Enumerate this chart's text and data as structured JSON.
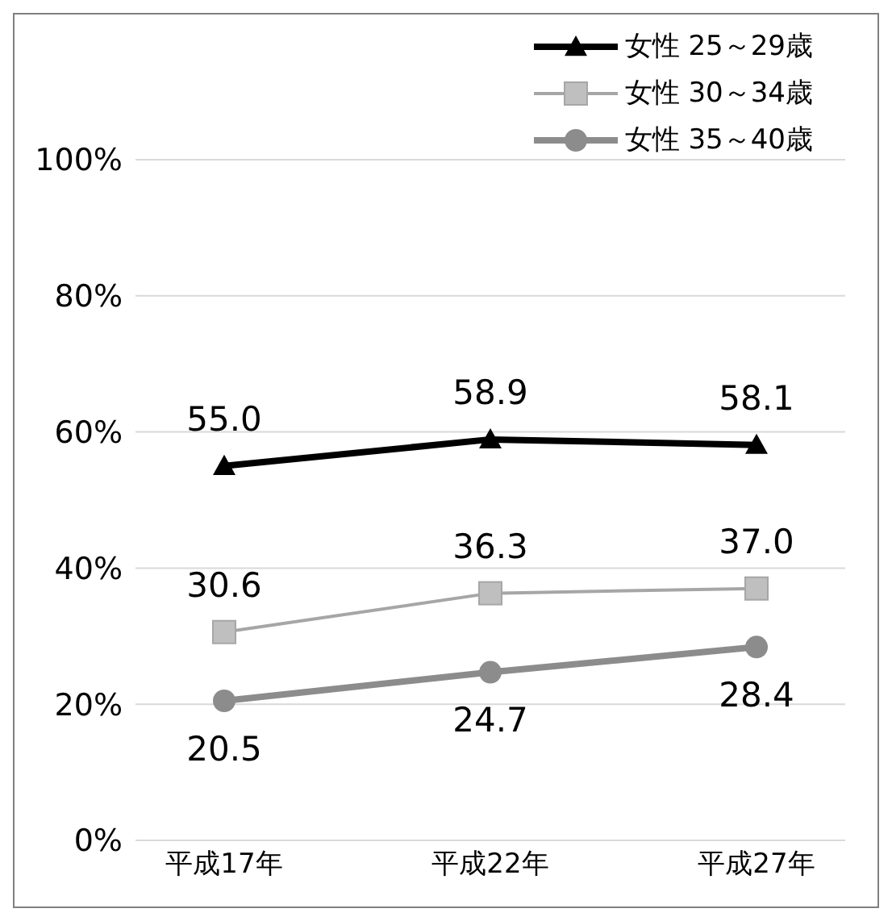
{
  "chart_data": {
    "type": "line",
    "categories": [
      "平成17年",
      "平成22年",
      "平成27年"
    ],
    "series": [
      {
        "name": "女性 25～29歳",
        "color": "#000000",
        "marker": "triangle",
        "values": [
          55.0,
          58.9,
          58.1
        ],
        "value_labels": [
          "55.0",
          "58.9",
          "58.1"
        ]
      },
      {
        "name": "女性 30～34歳",
        "color": "#a6a6a6",
        "marker": "square",
        "values": [
          30.6,
          36.3,
          37.0
        ],
        "value_labels": [
          "30.6",
          "36.3",
          "37.0"
        ]
      },
      {
        "name": "女性 35～40歳",
        "color": "#8c8c8c",
        "marker": "circle",
        "values": [
          20.5,
          24.7,
          28.4
        ],
        "value_labels": [
          "20.5",
          "24.7",
          "28.4"
        ]
      }
    ],
    "ylim": [
      0,
      100
    ],
    "yticks": [
      {
        "value": 0,
        "label": "0%"
      },
      {
        "value": 20,
        "label": "20%"
      },
      {
        "value": 40,
        "label": "40%"
      },
      {
        "value": 60,
        "label": "60%"
      },
      {
        "value": 80,
        "label": "80%"
      },
      {
        "value": 100,
        "label": "100%"
      }
    ],
    "grid": "y",
    "legend": "top right"
  }
}
